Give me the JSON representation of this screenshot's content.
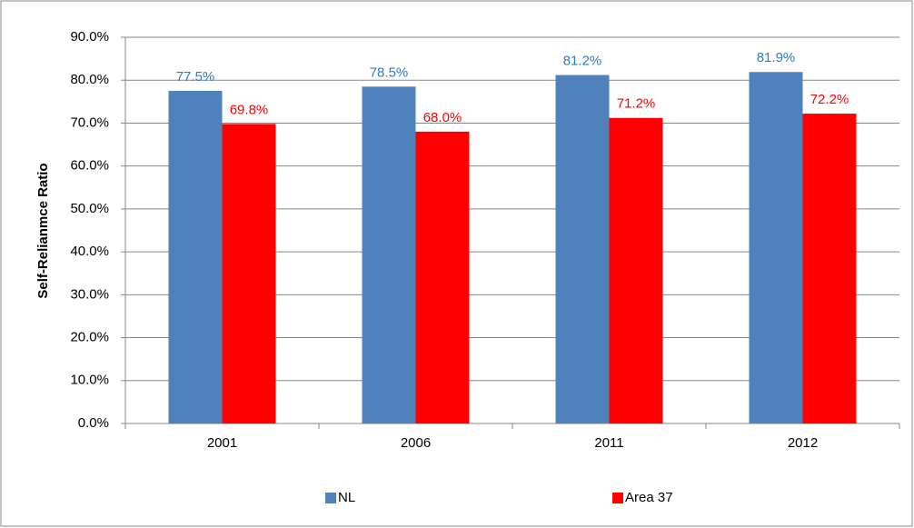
{
  "chart_data": {
    "type": "bar",
    "y_label": "Self-Relianmce Ratio",
    "categories": [
      "2001",
      "2006",
      "2011",
      "2012"
    ],
    "series": [
      {
        "name": "NL",
        "color": "#4f81bd",
        "label_color": "#2e7bc0",
        "values": [
          77.5,
          78.5,
          81.2,
          81.9
        ],
        "value_labels": [
          "77.5%",
          "78.5%",
          "81.2%",
          "81.9%"
        ]
      },
      {
        "name": "Area 37",
        "color": "#ff0000",
        "label_color": "#ff0000",
        "values": [
          69.8,
          68.0,
          71.2,
          72.2
        ],
        "value_labels": [
          "69.8%",
          "68.0%",
          "71.2%",
          "72.2%"
        ]
      }
    ],
    "ylim": [
      0,
      90
    ],
    "yticks": [
      {
        "value": 0,
        "label": "0.0%"
      },
      {
        "value": 10,
        "label": "10.0%"
      },
      {
        "value": 20,
        "label": "20.0%"
      },
      {
        "value": 30,
        "label": "30.0%"
      },
      {
        "value": 40,
        "label": "40.0%"
      },
      {
        "value": 50,
        "label": "50.0%"
      },
      {
        "value": 60,
        "label": "60.0%"
      },
      {
        "value": 70,
        "label": "70.0%"
      },
      {
        "value": 80,
        "label": "80.0%"
      },
      {
        "value": 90,
        "label": "90.0%"
      }
    ],
    "grid": true,
    "legend": "bottom"
  }
}
